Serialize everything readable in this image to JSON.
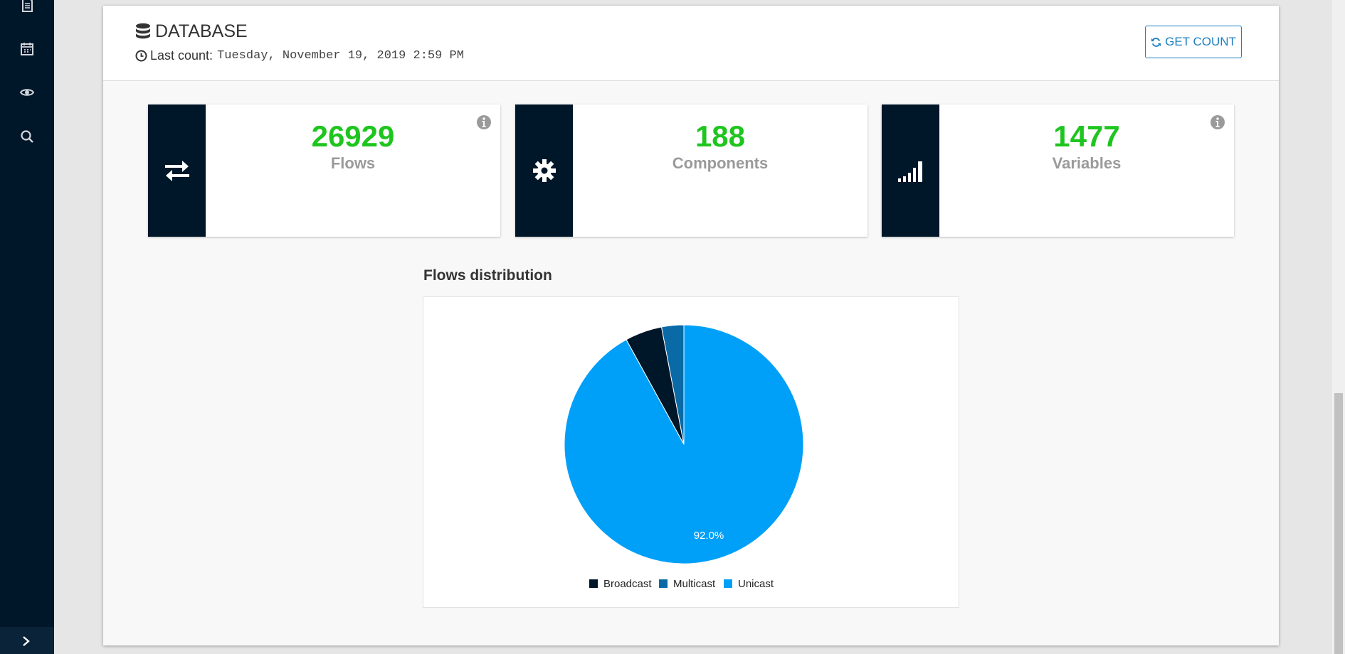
{
  "sidebar": {
    "icons": [
      "document-icon",
      "calendar-icon",
      "eye-icon",
      "search-icon"
    ],
    "expand_icon": "chevron-right-icon"
  },
  "header": {
    "title": "DATABASE",
    "last_count_label": "Last count:",
    "last_count_value": "Tuesday, November 19, 2019 2:59 PM",
    "get_count_label": "GET COUNT"
  },
  "cards": [
    {
      "value": "26929",
      "label": "Flows",
      "icon": "exchange-icon",
      "has_info": true
    },
    {
      "value": "188",
      "label": "Components",
      "icon": "gear-icon",
      "has_info": false
    },
    {
      "value": "1477",
      "label": "Variables",
      "icon": "signal-bars-icon",
      "has_info": true
    }
  ],
  "colors": {
    "sidebar": "#001629",
    "value_green": "#1fc51f",
    "accent_blue": "#1d7fc1",
    "broadcast": "#001629",
    "multicast": "#0a6aa6",
    "unicast": "#00a0f8"
  },
  "chart_title": "Flows distribution",
  "chart_data": {
    "type": "pie",
    "title": "Flows distribution",
    "series": [
      {
        "name": "Broadcast",
        "value": 5.0,
        "color": "#001629"
      },
      {
        "name": "Multicast",
        "value": 3.0,
        "color": "#0a6aa6"
      },
      {
        "name": "Unicast",
        "value": 92.0,
        "color": "#00a0f8"
      }
    ],
    "data_labels": [
      "92.0%"
    ],
    "legend_position": "bottom"
  }
}
